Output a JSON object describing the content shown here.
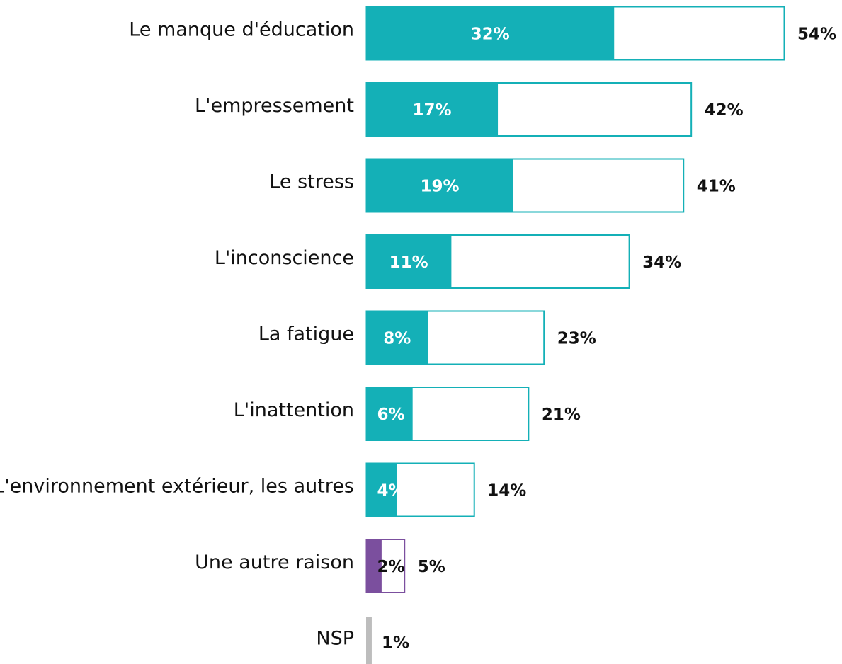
{
  "chart_data": {
    "type": "bar",
    "orientation": "horizontal",
    "categories": [
      "Le manque d'éducation",
      "L'empressement",
      "Le stress",
      "L'inconscience",
      "La fatigue",
      "L'inattention",
      "L'environnement extérieur, les autres",
      "Une autre raison",
      "NSP"
    ],
    "series": [
      {
        "values": [
          32,
          17,
          19,
          11,
          8,
          6,
          4,
          2,
          null
        ],
        "value_labels": [
          "32%",
          "17%",
          "19%",
          "11%",
          "8%",
          "6%",
          "4%",
          "2%",
          null
        ]
      },
      {
        "values": [
          54,
          42,
          41,
          34,
          23,
          21,
          14,
          5,
          1
        ],
        "value_labels": [
          "54%",
          "42%",
          "41%",
          "34%",
          "23%",
          "21%",
          "14%",
          "5%",
          "1%"
        ]
      }
    ],
    "colors": [
      "#14b0b7",
      "#14b0b7",
      "#14b0b7",
      "#14b0b7",
      "#14b0b7",
      "#14b0b7",
      "#14b0b7",
      "#7b4f9e",
      "#bdbdbd"
    ],
    "xlim": [
      0,
      54
    ]
  }
}
